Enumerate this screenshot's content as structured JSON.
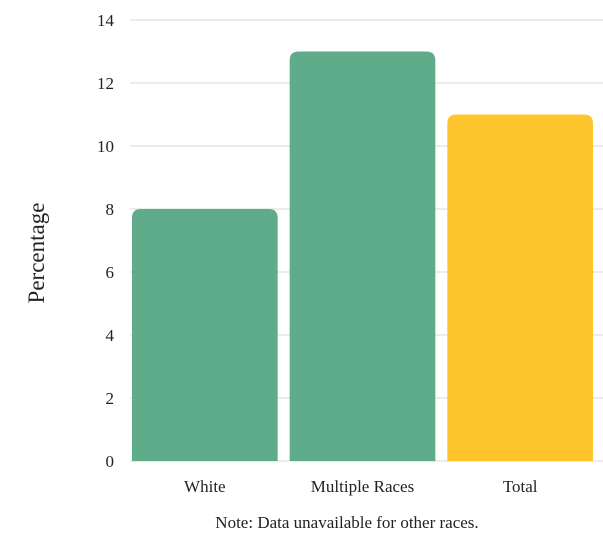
{
  "chart_data": {
    "type": "bar",
    "title": "",
    "xlabel": "",
    "ylabel": "Percentage",
    "ylim": [
      0,
      14
    ],
    "yticks": [
      0,
      2,
      4,
      6,
      8,
      10,
      12,
      14
    ],
    "grid": true,
    "legend": "none",
    "categories": [
      "White",
      "Multiple Races",
      "Total"
    ],
    "values": [
      8,
      13,
      11
    ],
    "colors": [
      "#5fac8b",
      "#5fac8b",
      "#fec52e"
    ],
    "note": "Note: Data unavailable for other races."
  }
}
